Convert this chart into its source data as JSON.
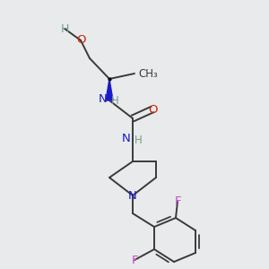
{
  "background_color": "#e8eaec",
  "bond_color": "#3a3a3a",
  "bond_width": 1.4,
  "label_colors": {
    "H": "#7a9a8a",
    "O": "#cc2200",
    "N": "#1a1acc",
    "F": "#cc44cc",
    "C": "#3a3a3a"
  },
  "figsize": [
    3.0,
    3.0
  ],
  "dpi": 100
}
